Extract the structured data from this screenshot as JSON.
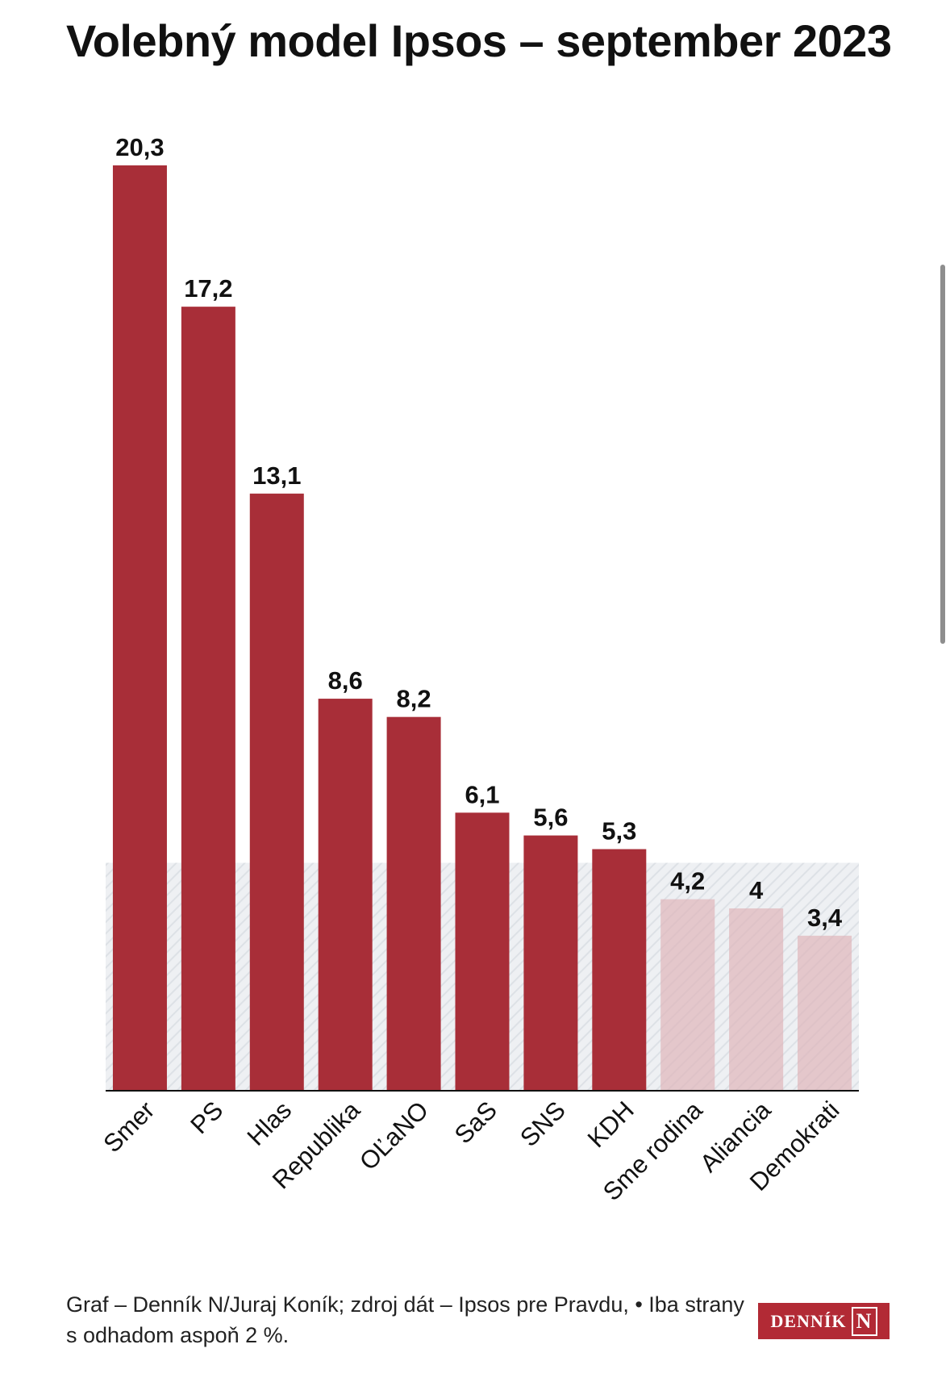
{
  "header": {
    "title": "Volebný model Ipsos – september 2023"
  },
  "chart_data": {
    "type": "bar",
    "categories": [
      "Smer",
      "PS",
      "Hlas",
      "Republika",
      "OĽaNO",
      "SaS",
      "SNS",
      "KDH",
      "Sme rodina",
      "Aliancia",
      "Demokrati"
    ],
    "values": [
      20.3,
      17.2,
      13.1,
      8.6,
      8.2,
      6.1,
      5.6,
      5.3,
      4.2,
      4,
      3.4
    ],
    "value_labels": [
      "20,3",
      "17,2",
      "13,1",
      "8,6",
      "8,2",
      "6,1",
      "5,6",
      "5,3",
      "4,2",
      "4",
      "3,4"
    ],
    "below_threshold": [
      false,
      false,
      false,
      false,
      false,
      false,
      false,
      false,
      true,
      true,
      true
    ],
    "threshold": 5,
    "ylim": [
      0,
      20.3
    ],
    "grid": false,
    "colors": {
      "bar": "#a82e38",
      "bar_below_threshold": "#dfb1b6",
      "threshold_zone": "#e9ecf0",
      "axis": "#111111"
    }
  },
  "footer": {
    "source_text": "Graf – Denník N/Juraj Koník; zdroj dát – Ipsos pre Pravdu, • Iba strany s odhadom aspoň 2 %."
  },
  "logo": {
    "text": "DENNÍK",
    "mark": "N"
  }
}
